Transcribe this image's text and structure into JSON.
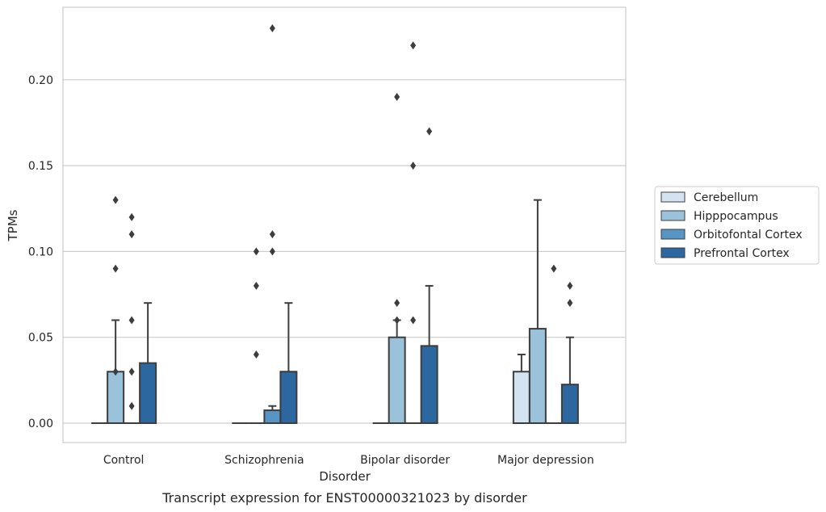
{
  "chart_data": {
    "type": "box",
    "title": "",
    "caption": "Transcript expression for ENST00000321023 by disorder",
    "xlabel": "Disorder",
    "ylabel": "TPMs",
    "ylim": [
      -0.011,
      0.243
    ],
    "yticks": [
      0.0,
      0.05,
      0.1,
      0.15,
      0.2
    ],
    "ytick_labels": [
      "0.00",
      "0.05",
      "0.10",
      "0.15",
      "0.20"
    ],
    "grid": true,
    "legend_position": "right",
    "categories": [
      "Control",
      "Schizophrenia",
      "Bipolar disorder",
      "Major depression"
    ],
    "series": [
      {
        "name": "Cerebellum",
        "color": "#d3e3f1",
        "boxes": [
          {
            "q1": 0,
            "median": 0,
            "q3": 0,
            "whisker_low": 0,
            "whisker_high": 0,
            "outliers": []
          },
          {
            "q1": 0,
            "median": 0,
            "q3": 0,
            "whisker_low": 0,
            "whisker_high": 0,
            "outliers": []
          },
          {
            "q1": 0,
            "median": 0,
            "q3": 0,
            "whisker_low": 0,
            "whisker_high": 0,
            "outliers": []
          },
          {
            "q1": 0,
            "median": 0,
            "q3": 0.03,
            "whisker_low": 0,
            "whisker_high": 0.04,
            "outliers": []
          }
        ]
      },
      {
        "name": "Hipppocampus",
        "color": "#9ac2da",
        "boxes": [
          {
            "q1": 0,
            "median": 0,
            "q3": 0.03,
            "whisker_low": 0,
            "whisker_high": 0.06,
            "outliers": [
              0.13,
              0.09,
              0.03
            ]
          },
          {
            "q1": 0,
            "median": 0,
            "q3": 0,
            "whisker_low": 0,
            "whisker_high": 0,
            "outliers": [
              0.1,
              0.08,
              0.04
            ]
          },
          {
            "q1": 0,
            "median": 0,
            "q3": 0.05,
            "whisker_low": 0,
            "whisker_high": 0.06,
            "outliers": [
              0.19,
              0.07,
              0.06
            ]
          },
          {
            "q1": 0,
            "median": 0,
            "q3": 0.055,
            "whisker_low": 0,
            "whisker_high": 0.13,
            "outliers": []
          }
        ]
      },
      {
        "name": "Orbitofontal Cortex",
        "color": "#5795c4",
        "boxes": [
          {
            "q1": 0,
            "median": 0,
            "q3": 0,
            "whisker_low": 0,
            "whisker_high": 0,
            "outliers": [
              0.12,
              0.11,
              0.06,
              0.03,
              0.01
            ]
          },
          {
            "q1": 0,
            "median": 0,
            "q3": 0.0075,
            "whisker_low": 0,
            "whisker_high": 0.01,
            "outliers": [
              0.23,
              0.11,
              0.1
            ]
          },
          {
            "q1": 0,
            "median": 0,
            "q3": 0,
            "whisker_low": 0,
            "whisker_high": 0,
            "outliers": [
              0.22,
              0.15,
              0.06
            ]
          },
          {
            "q1": 0,
            "median": 0,
            "q3": 0,
            "whisker_low": 0,
            "whisker_high": 0,
            "outliers": [
              0.09
            ]
          }
        ]
      },
      {
        "name": "Prefrontal Cortex",
        "color": "#2c67a0",
        "boxes": [
          {
            "q1": 0,
            "median": 0,
            "q3": 0.035,
            "whisker_low": 0,
            "whisker_high": 0.07,
            "outliers": []
          },
          {
            "q1": 0,
            "median": 0,
            "q3": 0.03,
            "whisker_low": 0,
            "whisker_high": 0.07,
            "outliers": []
          },
          {
            "q1": 0,
            "median": 0,
            "q3": 0.045,
            "whisker_low": 0,
            "whisker_high": 0.08,
            "outliers": [
              0.17
            ]
          },
          {
            "q1": 0,
            "median": 0,
            "q3": 0.0225,
            "whisker_low": 0,
            "whisker_high": 0.05,
            "outliers": [
              0.08,
              0.07
            ]
          }
        ]
      }
    ]
  }
}
